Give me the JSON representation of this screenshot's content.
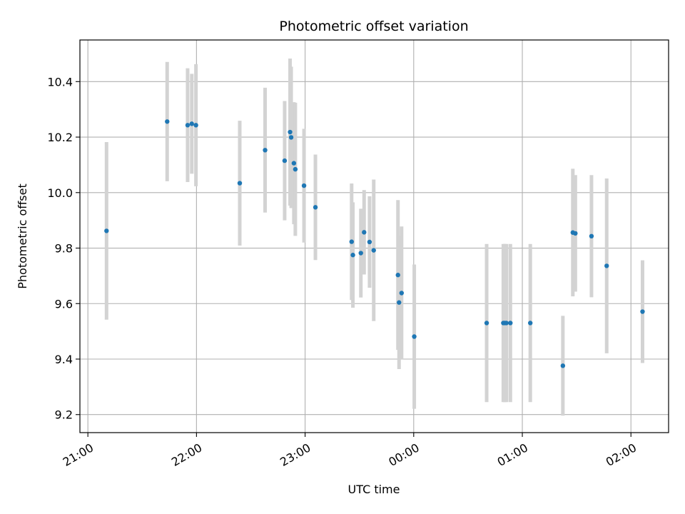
{
  "chart_data": {
    "type": "scatter",
    "title": "Photometric offset variation",
    "xlabel": "UTC time",
    "ylabel": "Photometric offset",
    "x_ticks": [
      "21:00",
      "22:00",
      "23:00",
      "00:00",
      "01:00",
      "02:00"
    ],
    "x_tick_minutes": [
      0,
      60,
      120,
      180,
      240,
      300
    ],
    "y_ticks": [
      "9.2",
      "9.4",
      "9.6",
      "9.8",
      "10.0",
      "10.2",
      "10.4"
    ],
    "y_tick_values": [
      9.2,
      9.4,
      9.6,
      9.8,
      10.0,
      10.2,
      10.4
    ],
    "xlim_minutes": [
      -4.4,
      320.8
    ],
    "ylim": [
      9.135,
      10.55
    ],
    "grid": true,
    "colors": {
      "points": "#1f77b4",
      "errorbars": "#d3d3d3",
      "grid": "#b0b0b0",
      "axes": "#000000"
    },
    "points": [
      {
        "time": "21:10",
        "minute": 10.3,
        "y": 9.862,
        "err": 0.32
      },
      {
        "time": "21:44",
        "minute": 43.8,
        "y": 10.256,
        "err": 0.215
      },
      {
        "time": "21:55",
        "minute": 55.1,
        "y": 10.243,
        "err": 0.205
      },
      {
        "time": "21:57",
        "minute": 57.4,
        "y": 10.248,
        "err": 0.18
      },
      {
        "time": "21:60",
        "minute": 59.7,
        "y": 10.243,
        "err": 0.22
      },
      {
        "time": "22:24",
        "minute": 83.9,
        "y": 10.034,
        "err": 0.225
      },
      {
        "time": "22:38",
        "minute": 97.9,
        "y": 10.153,
        "err": 0.225
      },
      {
        "time": "22:49",
        "minute": 108.7,
        "y": 10.115,
        "err": 0.215
      },
      {
        "time": "22:52",
        "minute": 111.7,
        "y": 10.218,
        "err": 0.265
      },
      {
        "time": "22:52",
        "minute": 112.3,
        "y": 10.199,
        "err": 0.255
      },
      {
        "time": "22:54",
        "minute": 113.8,
        "y": 10.106,
        "err": 0.22
      },
      {
        "time": "22:55",
        "minute": 114.6,
        "y": 10.084,
        "err": 0.24
      },
      {
        "time": "22:59",
        "minute": 119.4,
        "y": 10.025,
        "err": 0.205
      },
      {
        "time": "23:06",
        "minute": 125.7,
        "y": 9.947,
        "err": 0.19
      },
      {
        "time": "23:26",
        "minute": 145.7,
        "y": 9.823,
        "err": 0.21
      },
      {
        "time": "23:26",
        "minute": 146.4,
        "y": 9.775,
        "err": 0.19
      },
      {
        "time": "23:31",
        "minute": 150.8,
        "y": 9.782,
        "err": 0.16
      },
      {
        "time": "23:33",
        "minute": 152.6,
        "y": 9.857,
        "err": 0.152
      },
      {
        "time": "23:36",
        "minute": 155.6,
        "y": 9.822,
        "err": 0.165
      },
      {
        "time": "23:38",
        "minute": 157.9,
        "y": 9.792,
        "err": 0.255
      },
      {
        "time": "23:51",
        "minute": 171.3,
        "y": 9.703,
        "err": 0.27
      },
      {
        "time": "23:52",
        "minute": 171.9,
        "y": 9.604,
        "err": 0.24
      },
      {
        "time": "23:53",
        "minute": 173.3,
        "y": 9.638,
        "err": 0.24
      },
      {
        "time": "00:00",
        "minute": 180.3,
        "y": 9.481,
        "err": 0.26
      },
      {
        "time": "00:40",
        "minute": 220.3,
        "y": 9.53,
        "err": 0.285
      },
      {
        "time": "00:50",
        "minute": 229.5,
        "y": 9.53,
        "err": 0.285
      },
      {
        "time": "00:50",
        "minute": 230.3,
        "y": 9.53,
        "err": 0.285
      },
      {
        "time": "00:51",
        "minute": 231.2,
        "y": 9.53,
        "err": 0.285
      },
      {
        "time": "00:53",
        "minute": 233.4,
        "y": 9.53,
        "err": 0.285
      },
      {
        "time": "01:04",
        "minute": 244.4,
        "y": 9.53,
        "err": 0.285
      },
      {
        "time": "01:22",
        "minute": 262.4,
        "y": 9.376,
        "err": 0.18
      },
      {
        "time": "01:28",
        "minute": 267.9,
        "y": 9.856,
        "err": 0.23
      },
      {
        "time": "01:29",
        "minute": 269.3,
        "y": 9.853,
        "err": 0.21
      },
      {
        "time": "01:38",
        "minute": 278.2,
        "y": 9.843,
        "err": 0.22
      },
      {
        "time": "01:47",
        "minute": 286.6,
        "y": 9.736,
        "err": 0.315
      },
      {
        "time": "02:06",
        "minute": 306.4,
        "y": 9.571,
        "err": 0.185
      }
    ]
  }
}
